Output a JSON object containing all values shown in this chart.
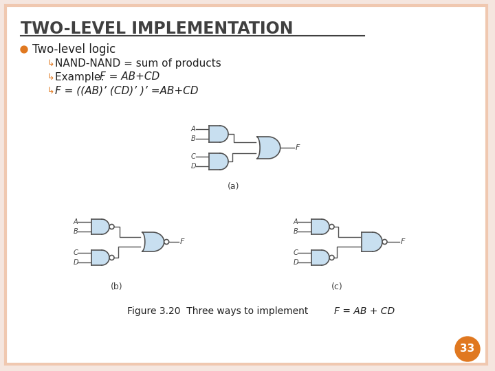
{
  "title": "TWO-LEVEL IMPLEMENTATION",
  "background_color": "#FFFFFF",
  "border_color": "#F0C8B0",
  "slide_bg": "#F5E6DF",
  "bullet_color": "#E07820",
  "title_color": "#404040",
  "body_text_color": "#202020",
  "gate_fill": "#C8DFF0",
  "gate_stroke": "#505050",
  "line_color": "#505050",
  "page_num": "33",
  "page_num_bg": "#E07820",
  "bullet1": "Two-level logic",
  "sub1": "NAND-NAND = sum of products",
  "sub2_pre": "Example: ",
  "sub2_eq": "F = AB+CD",
  "sub3_eq": "F = ((AB)’ (CD)’ )’ =AB+CD",
  "label_a": "(a)",
  "label_b": "(b)",
  "label_c": "(c)"
}
